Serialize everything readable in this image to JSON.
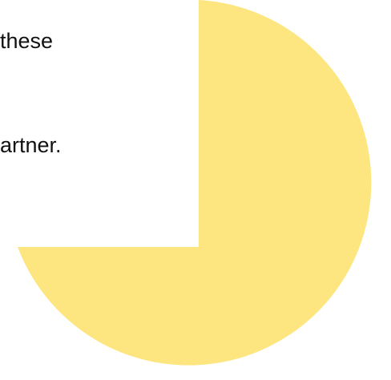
{
  "slide": {
    "text_lines": [
      "these",
      "artner."
    ],
    "shape": {
      "kind": "three-quarter-circle",
      "fill": "#FDE680"
    }
  }
}
